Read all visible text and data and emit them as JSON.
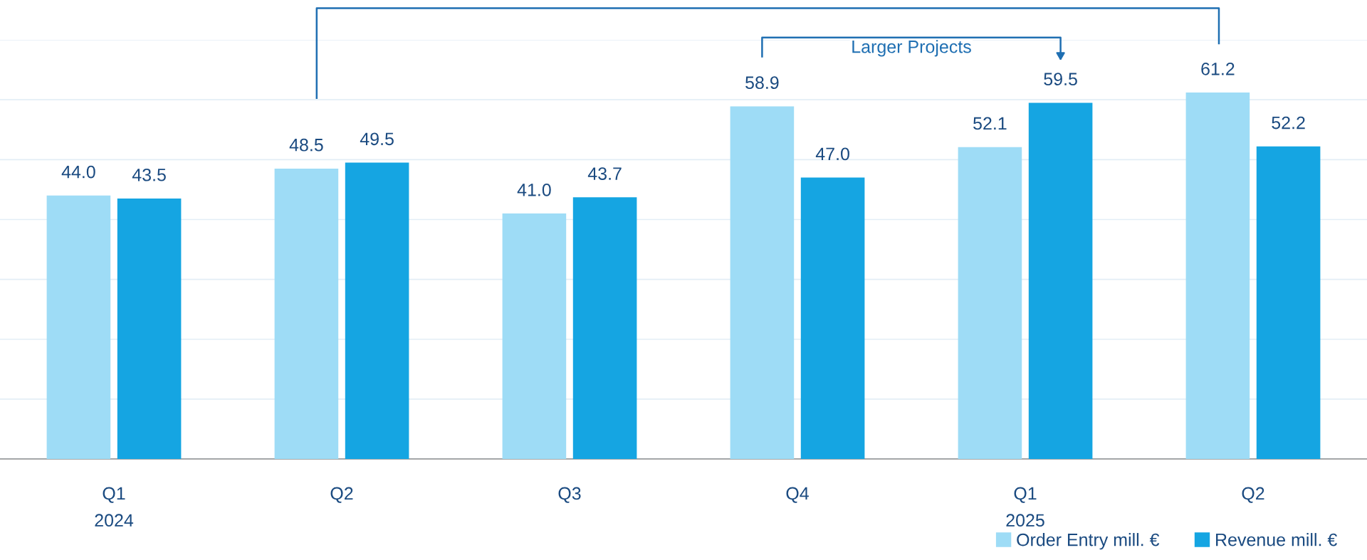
{
  "chart_data": {
    "type": "bar",
    "categories": [
      "Q1\n2024",
      "Q2",
      "Q3",
      "Q4",
      "Q1\n2025",
      "Q2"
    ],
    "series": [
      {
        "name": "Order Entry mill. €",
        "color": "#9edcf6",
        "values": [
          44.0,
          48.5,
          41.0,
          58.9,
          52.1,
          61.2
        ],
        "value_labels": [
          "44.0",
          "48.5",
          "41.0",
          "58.9",
          "52.1",
          "61.2"
        ]
      },
      {
        "name": "Revenue mill. €",
        "color": "#15a5e2",
        "values": [
          43.5,
          49.5,
          43.7,
          47.0,
          59.5,
          52.2
        ],
        "value_labels": [
          "43.5",
          "49.5",
          "43.7",
          "47.0",
          "59.5",
          "52.2"
        ]
      }
    ],
    "ylim": [
      0,
      70
    ],
    "yticks": [
      {
        "value": 0,
        "label": null
      },
      {
        "value": 10,
        "label": null
      },
      {
        "value": 20,
        "label": null
      },
      {
        "value": 30,
        "label": null
      },
      {
        "value": 40,
        "label": null
      },
      {
        "value": 50,
        "label": null
      },
      {
        "value": 60,
        "label": null
      },
      {
        "value": 70,
        "label": null
      }
    ],
    "grid": "y",
    "legend": "bottom right",
    "annotations": [
      "Larger Projects"
    ]
  }
}
